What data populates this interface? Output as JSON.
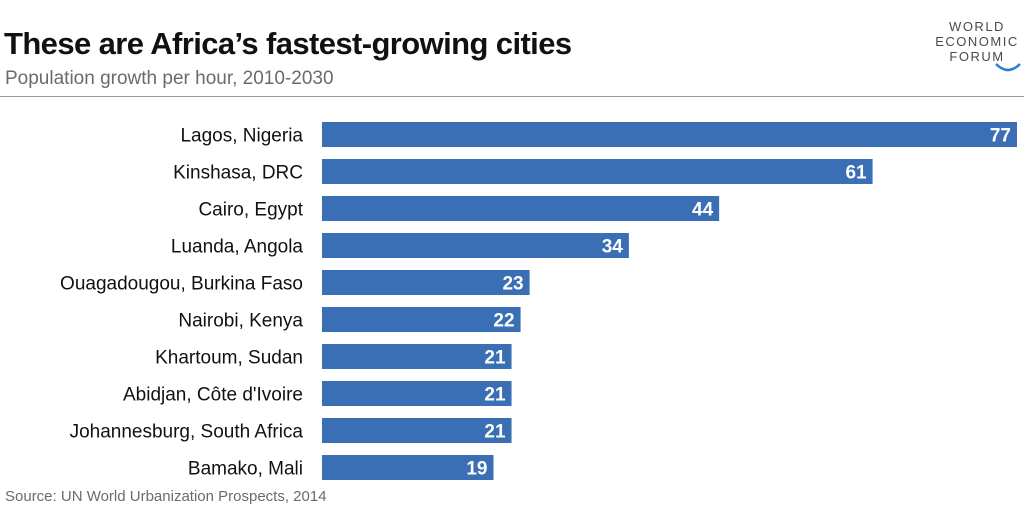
{
  "header": {
    "title": "These are Africa’s fastest-growing cities",
    "subtitle": "Population growth per hour, 2010-2030"
  },
  "logo": {
    "line1": "WORLD",
    "line2": "ECONOMIC",
    "line3": "FORUM"
  },
  "source": "Source: UN World Urbanization Prospects, 2014",
  "colors": {
    "bar": "#3a6eb5",
    "label": "#111111",
    "value_label": "#ffffff",
    "logo_arc": "#2b7fd1"
  },
  "chart_data": {
    "type": "bar",
    "orientation": "horizontal",
    "title": "These are Africa’s fastest-growing cities",
    "subtitle": "Population growth per hour, 2010-2030",
    "categories": [
      "Lagos, Nigeria",
      "Kinshasa, DRC",
      "Cairo, Egypt",
      "Luanda, Angola",
      "Ouagadougou, Burkina Faso",
      "Nairobi, Kenya",
      "Khartoum, Sudan",
      "Abidjan, Côte d'Ivoire",
      "Johannesburg, South Africa",
      "Bamako, Mali"
    ],
    "values": [
      77,
      61,
      44,
      34,
      23,
      22,
      21,
      21,
      21,
      19
    ],
    "data_labels": true,
    "grid": false,
    "legend": "none",
    "xlim": [
      0,
      77
    ]
  }
}
